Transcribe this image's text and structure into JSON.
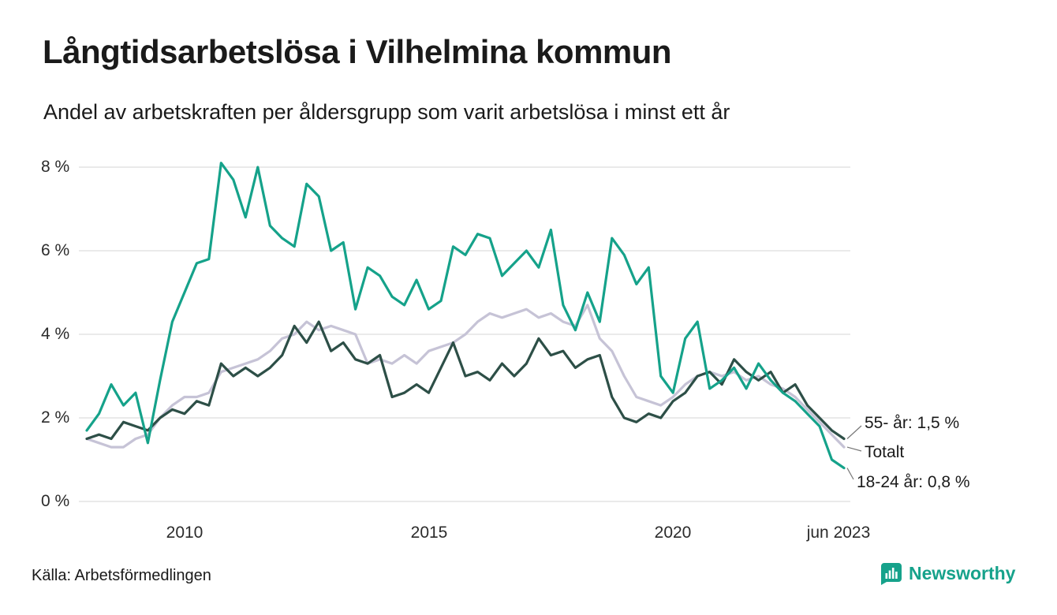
{
  "page": {
    "title": "Långtidsarbetslösa i Vilhelmina kommun",
    "subtitle": "Andel av arbetskraften per åldersgrupp som varit arbetslösa i minst ett år",
    "source": "Källa: Arbetsförmedlingen",
    "brand": "Newsworthy"
  },
  "colors": {
    "accent_teal": "#16a28b",
    "series_18_24": "#15a28a",
    "series_55": "#2d4f47",
    "series_total": "#c6c3d6",
    "gridline": "#e4e4e4"
  },
  "chart_data": {
    "type": "line",
    "title": "Långtidsarbetslösa i Vilhelmina kommun",
    "subtitle": "Andel av arbetskraften per åldersgrupp som varit arbetslösa i minst ett år",
    "xlabel": "",
    "ylabel": "",
    "ylim": [
      0,
      8.5
    ],
    "xlim": [
      2008,
      2023.5
    ],
    "grid": "horizontal",
    "legend_position": "end-of-line-labels",
    "yticks": [
      0,
      2,
      4,
      6,
      8
    ],
    "ytick_labels": [
      "0 %",
      "2 %",
      "4 %",
      "6 %",
      "8 %"
    ],
    "xticks": [
      2010,
      2015,
      2020,
      2023.42
    ],
    "xtick_labels": [
      "2010",
      "2015",
      "2020",
      "jun 2023"
    ],
    "end_labels": [
      "55- år: 1,5 %",
      "Totalt",
      "18-24 år: 0,8 %"
    ],
    "annotation_series": [
      "55- år",
      "Totalt",
      "18-24 år"
    ],
    "x": [
      2008,
      2008.25,
      2008.5,
      2008.75,
      2009,
      2009.25,
      2009.5,
      2009.75,
      2010,
      2010.25,
      2010.5,
      2010.75,
      2011,
      2011.25,
      2011.5,
      2011.75,
      2012,
      2012.25,
      2012.5,
      2012.75,
      2013,
      2013.25,
      2013.5,
      2013.75,
      2014,
      2014.25,
      2014.5,
      2014.75,
      2015,
      2015.25,
      2015.5,
      2015.75,
      2016,
      2016.25,
      2016.5,
      2016.75,
      2017,
      2017.25,
      2017.5,
      2017.75,
      2018,
      2018.25,
      2018.5,
      2018.75,
      2019,
      2019.25,
      2019.5,
      2019.75,
      2020,
      2020.25,
      2020.5,
      2020.75,
      2021,
      2021.25,
      2021.5,
      2021.75,
      2022,
      2022.25,
      2022.5,
      2022.75,
      2023,
      2023.25,
      2023.5
    ],
    "series": [
      {
        "name": "Totalt",
        "color": "#c6c3d6",
        "final_value": 1.3,
        "values": [
          1.5,
          1.4,
          1.3,
          1.3,
          1.5,
          1.6,
          2.0,
          2.3,
          2.5,
          2.5,
          2.6,
          3.1,
          3.2,
          3.3,
          3.4,
          3.6,
          3.9,
          4.0,
          4.3,
          4.1,
          4.2,
          4.1,
          4.0,
          3.3,
          3.4,
          3.3,
          3.5,
          3.3,
          3.6,
          3.7,
          3.8,
          4.0,
          4.3,
          4.5,
          4.4,
          4.5,
          4.6,
          4.4,
          4.5,
          4.3,
          4.2,
          4.7,
          3.9,
          3.6,
          3.0,
          2.5,
          2.4,
          2.3,
          2.5,
          2.8,
          3.0,
          3.1,
          3.0,
          3.1,
          2.9,
          3.0,
          2.8,
          2.7,
          2.5,
          2.2,
          1.9,
          1.6,
          1.3
        ]
      },
      {
        "name": "55- år",
        "color": "#2d4f47",
        "final_value": 1.5,
        "values": [
          1.5,
          1.6,
          1.5,
          1.9,
          1.8,
          1.7,
          2.0,
          2.2,
          2.1,
          2.4,
          2.3,
          3.3,
          3.0,
          3.2,
          3.0,
          3.2,
          3.5,
          4.2,
          3.8,
          4.3,
          3.6,
          3.8,
          3.4,
          3.3,
          3.5,
          2.5,
          2.6,
          2.8,
          2.6,
          3.2,
          3.8,
          3.0,
          3.1,
          2.9,
          3.3,
          3.0,
          3.3,
          3.9,
          3.5,
          3.6,
          3.2,
          3.4,
          3.5,
          2.5,
          2.0,
          1.9,
          2.1,
          2.0,
          2.4,
          2.6,
          3.0,
          3.1,
          2.8,
          3.4,
          3.1,
          2.9,
          3.1,
          2.6,
          2.8,
          2.3,
          2.0,
          1.7,
          1.5
        ]
      },
      {
        "name": "18-24 år",
        "color": "#15a28a",
        "final_value": 0.8,
        "values": [
          1.7,
          2.1,
          2.8,
          2.3,
          2.6,
          1.4,
          2.9,
          4.3,
          5.0,
          5.7,
          5.8,
          8.1,
          7.7,
          6.8,
          8.0,
          6.6,
          6.3,
          6.1,
          7.6,
          7.3,
          6.0,
          6.2,
          4.6,
          5.6,
          5.4,
          4.9,
          4.7,
          5.3,
          4.6,
          4.8,
          6.1,
          5.9,
          6.4,
          6.3,
          5.4,
          5.7,
          6.0,
          5.6,
          6.5,
          4.7,
          4.1,
          5.0,
          4.3,
          6.3,
          5.9,
          5.2,
          5.6,
          3.0,
          2.6,
          3.9,
          4.3,
          2.7,
          2.9,
          3.2,
          2.7,
          3.3,
          2.9,
          2.6,
          2.4,
          2.1,
          1.8,
          1.0,
          0.8
        ]
      }
    ]
  }
}
